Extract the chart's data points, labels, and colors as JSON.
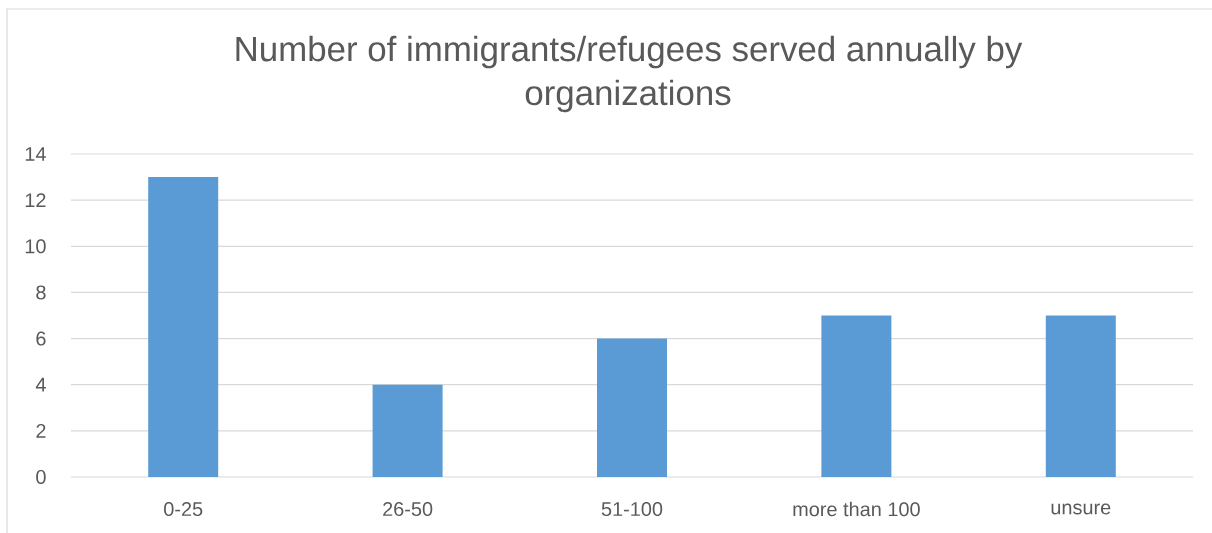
{
  "chart_data": {
    "type": "bar",
    "title": "Number of immigrants/refugees served annually by organizations",
    "categories": [
      "0-25",
      "26-50",
      "51-100",
      "more than 100",
      "unsure"
    ],
    "values": [
      13,
      4,
      6,
      7,
      7
    ],
    "color": "#5b9bd5",
    "ylim": [
      0,
      14
    ],
    "yticks": [
      0,
      2,
      4,
      6,
      8,
      10,
      12,
      14
    ],
    "grid": "y"
  }
}
